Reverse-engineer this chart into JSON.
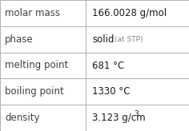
{
  "rows": [
    {
      "label": "molar mass",
      "value": "166.0028 g/mol",
      "value_main": null,
      "value_sub": null
    },
    {
      "label": "phase",
      "value": null,
      "value_main": "solid",
      "value_sub": "(at STP)"
    },
    {
      "label": "melting point",
      "value": "681 °C",
      "value_main": null,
      "value_sub": null
    },
    {
      "label": "boiling point",
      "value": "1330 °C",
      "value_main": null,
      "value_sub": null
    },
    {
      "label": "density",
      "value": "3.123 g/cm³",
      "value_main": null,
      "value_sub": null
    }
  ],
  "col_split": 0.455,
  "background_color": "#ffffff",
  "border_color": "#b0b0b0",
  "label_color": "#404040",
  "value_color": "#1a1a1a",
  "value_sub_color": "#888888",
  "label_fontsize": 8.5,
  "value_fontsize": 8.5,
  "value_sub_fontsize": 6.5
}
